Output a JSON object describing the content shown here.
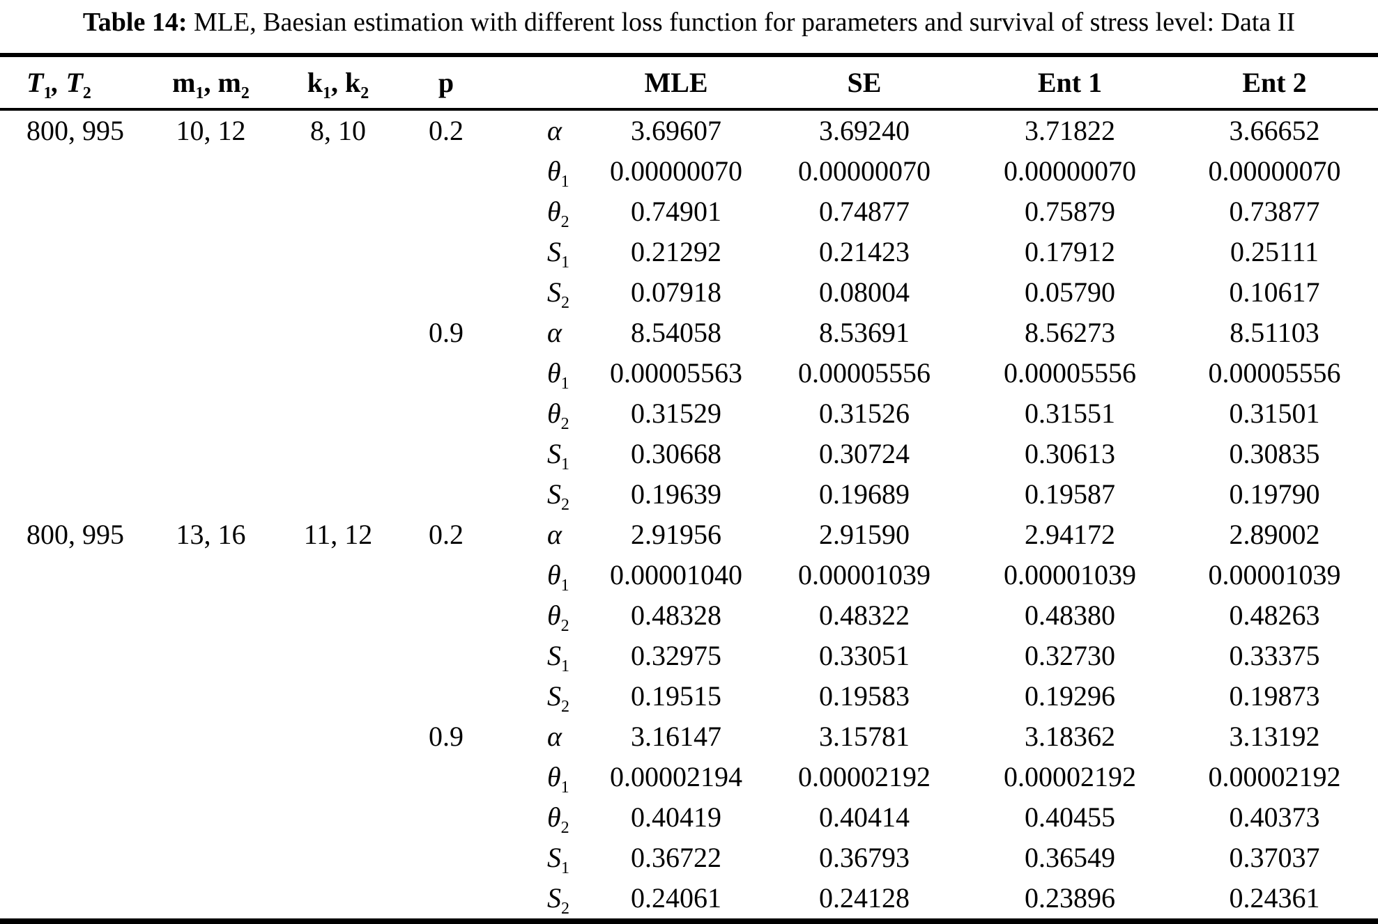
{
  "page": {
    "caption_label": "Table 14:",
    "caption_text": " MLE, Baesian estimation with different loss function for parameters and survival of stress level: Data II"
  },
  "table": {
    "headers": [
      {
        "key": "T",
        "text": "T_1, T_2"
      },
      {
        "key": "m",
        "text": "m_1, m_2"
      },
      {
        "key": "k",
        "text": "k_1, k_2"
      },
      {
        "key": "p",
        "text": "p"
      },
      {
        "key": "param",
        "text": ""
      },
      {
        "key": "mle",
        "text": "MLE"
      },
      {
        "key": "se",
        "text": "SE"
      },
      {
        "key": "ent1",
        "text": "Ent 1"
      },
      {
        "key": "ent2",
        "text": "Ent 2"
      }
    ],
    "blocks": [
      {
        "T": "800, 995",
        "m": "10, 12",
        "k": "8, 10",
        "groups": [
          {
            "p": "0.2",
            "rows": [
              {
                "param": "α",
                "values": [
                  "3.69607",
                  "3.69240",
                  "3.71822",
                  "3.66652"
                ]
              },
              {
                "param": "θ_1",
                "values": [
                  "0.00000070",
                  "0.00000070",
                  "0.00000070",
                  "0.00000070"
                ]
              },
              {
                "param": "θ_2",
                "values": [
                  "0.74901",
                  "0.74877",
                  "0.75879",
                  "0.73877"
                ]
              },
              {
                "param": "S_1",
                "values": [
                  "0.21292",
                  "0.21423",
                  "0.17912",
                  "0.25111"
                ]
              },
              {
                "param": "S_2",
                "values": [
                  "0.07918",
                  "0.08004",
                  "0.05790",
                  "0.10617"
                ]
              }
            ]
          },
          {
            "p": "0.9",
            "rows": [
              {
                "param": "α",
                "values": [
                  "8.54058",
                  "8.53691",
                  "8.56273",
                  "8.51103"
                ]
              },
              {
                "param": "θ_1",
                "values": [
                  "0.00005563",
                  "0.00005556",
                  "0.00005556",
                  "0.00005556"
                ]
              },
              {
                "param": "θ_2",
                "values": [
                  "0.31529",
                  "0.31526",
                  "0.31551",
                  "0.31501"
                ]
              },
              {
                "param": "S_1",
                "values": [
                  "0.30668",
                  "0.30724",
                  "0.30613",
                  "0.30835"
                ]
              },
              {
                "param": "S_2",
                "values": [
                  "0.19639",
                  "0.19689",
                  "0.19587",
                  "0.19790"
                ]
              }
            ]
          }
        ]
      },
      {
        "T": "800, 995",
        "m": "13, 16",
        "k": "11, 12",
        "groups": [
          {
            "p": "0.2",
            "rows": [
              {
                "param": "α",
                "values": [
                  "2.91956",
                  "2.91590",
                  "2.94172",
                  "2.89002"
                ]
              },
              {
                "param": "θ_1",
                "values": [
                  "0.00001040",
                  "0.00001039",
                  "0.00001039",
                  "0.00001039"
                ]
              },
              {
                "param": "θ_2",
                "values": [
                  "0.48328",
                  "0.48322",
                  "0.48380",
                  "0.48263"
                ]
              },
              {
                "param": "S_1",
                "values": [
                  "0.32975",
                  "0.33051",
                  "0.32730",
                  "0.33375"
                ]
              },
              {
                "param": "S_2",
                "values": [
                  "0.19515",
                  "0.19583",
                  "0.19296",
                  "0.19873"
                ]
              }
            ]
          },
          {
            "p": "0.9",
            "rows": [
              {
                "param": "α",
                "values": [
                  "3.16147",
                  "3.15781",
                  "3.18362",
                  "3.13192"
                ]
              },
              {
                "param": "θ_1",
                "values": [
                  "0.00002194",
                  "0.00002192",
                  "0.00002192",
                  "0.00002192"
                ]
              },
              {
                "param": "θ_2",
                "values": [
                  "0.40419",
                  "0.40414",
                  "0.40455",
                  "0.40373"
                ]
              },
              {
                "param": "S_1",
                "values": [
                  "0.36722",
                  "0.36793",
                  "0.36549",
                  "0.37037"
                ]
              },
              {
                "param": "S_2",
                "values": [
                  "0.24061",
                  "0.24128",
                  "0.23896",
                  "0.24361"
                ]
              }
            ]
          }
        ]
      }
    ]
  }
}
